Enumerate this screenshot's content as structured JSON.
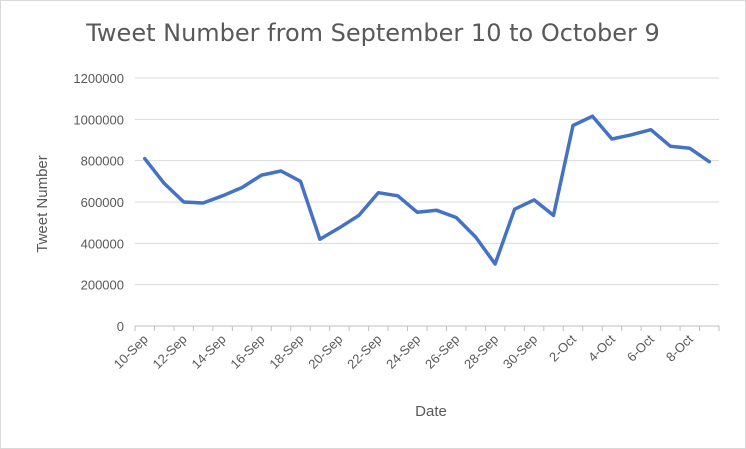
{
  "chart_data": {
    "type": "line",
    "title": "Tweet Number from September 10 to October 9",
    "xlabel": "Date",
    "ylabel": "Tweet Number",
    "ylim": [
      0,
      1200000
    ],
    "yticks": [
      0,
      200000,
      400000,
      600000,
      800000,
      1000000,
      1200000
    ],
    "grid": true,
    "legend": "none",
    "line_color": "#4472c4",
    "x": [
      "10-Sep",
      "11-Sep",
      "12-Sep",
      "13-Sep",
      "14-Sep",
      "15-Sep",
      "16-Sep",
      "17-Sep",
      "18-Sep",
      "19-Sep",
      "20-Sep",
      "21-Sep",
      "22-Sep",
      "23-Sep",
      "24-Sep",
      "25-Sep",
      "26-Sep",
      "27-Sep",
      "28-Sep",
      "29-Sep",
      "30-Sep",
      "1-Oct",
      "2-Oct",
      "3-Oct",
      "4-Oct",
      "5-Oct",
      "6-Oct",
      "7-Oct",
      "8-Oct",
      "9-Oct"
    ],
    "x_tick_labels": [
      "10-Sep",
      "12-Sep",
      "14-Sep",
      "16-Sep",
      "18-Sep",
      "20-Sep",
      "22-Sep",
      "24-Sep",
      "26-Sep",
      "28-Sep",
      "30-Sep",
      "2-Oct",
      "4-Oct",
      "6-Oct",
      "8-Oct"
    ],
    "series": [
      {
        "values": [
          810000,
          690000,
          600000,
          595000,
          630000,
          670000,
          730000,
          750000,
          700000,
          420000,
          475000,
          535000,
          645000,
          630000,
          550000,
          560000,
          525000,
          430000,
          300000,
          565000,
          610000,
          535000,
          970000,
          1015000,
          905000,
          925000,
          950000,
          870000,
          860000,
          795000
        ]
      }
    ]
  }
}
